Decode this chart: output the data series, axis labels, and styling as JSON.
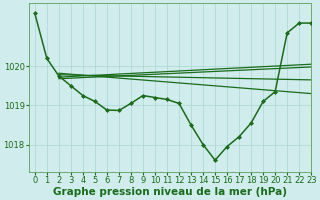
{
  "line_color": "#1a6b1a",
  "bg_color": "#d0ecec",
  "grid_color": "#aad4d4",
  "xlabel": "Graphe pression niveau de la mer (hPa)",
  "xlabel_fontsize": 7.5,
  "tick_fontsize": 6,
  "ylim": [
    1017.3,
    1021.6
  ],
  "xlim": [
    -0.5,
    23
  ],
  "yticks": [
    1018,
    1019,
    1020
  ],
  "xticks": [
    0,
    1,
    2,
    3,
    4,
    5,
    6,
    7,
    8,
    9,
    10,
    11,
    12,
    13,
    14,
    15,
    16,
    17,
    18,
    19,
    20,
    21,
    22,
    23
  ],
  "series": [
    {
      "x": [
        0,
        1,
        2,
        3,
        4,
        5,
        6,
        7,
        8,
        9,
        10,
        11,
        12,
        13,
        14,
        15,
        16,
        17,
        18,
        19,
        20,
        21,
        22,
        23
      ],
      "y": [
        1021.35,
        1020.2,
        1019.75,
        1019.5,
        1019.25,
        1019.1,
        1018.88,
        1018.87,
        1019.05,
        1019.25,
        1019.2,
        1019.15,
        1019.05,
        1018.5,
        1018.0,
        1017.6,
        1017.95,
        1018.2,
        1018.55,
        1019.1,
        1019.35,
        1020.85,
        1021.1,
        1021.1
      ],
      "marker": "D",
      "markersize": 2.0,
      "linewidth": 1.1,
      "has_marker": true
    },
    {
      "x": [
        2,
        23
      ],
      "y": [
        1019.72,
        1020.05
      ],
      "marker": null,
      "markersize": 0,
      "linewidth": 0.9,
      "has_marker": false
    },
    {
      "x": [
        2,
        23
      ],
      "y": [
        1019.78,
        1019.65
      ],
      "marker": null,
      "markersize": 0,
      "linewidth": 0.9,
      "has_marker": false
    },
    {
      "x": [
        2,
        23
      ],
      "y": [
        1019.82,
        1019.3
      ],
      "marker": null,
      "markersize": 0,
      "linewidth": 0.9,
      "has_marker": false
    },
    {
      "x": [
        2,
        23
      ],
      "y": [
        1019.68,
        1019.98
      ],
      "marker": null,
      "markersize": 0,
      "linewidth": 0.9,
      "has_marker": false
    }
  ]
}
